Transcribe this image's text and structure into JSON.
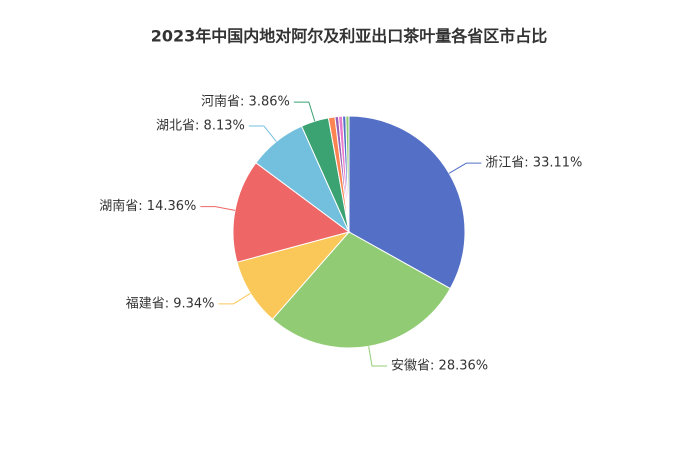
{
  "chart_data": {
    "type": "pie",
    "title": "2023年中国内地对阿尔及利亚出口茶叶量各省区市占比",
    "categories": [
      "浙江省",
      "安徽省",
      "福建省",
      "湖南省",
      "湖北省",
      "河南省",
      null,
      null,
      null,
      null,
      null
    ],
    "values": [
      33.11,
      28.36,
      9.34,
      14.36,
      8.13,
      3.86,
      0.9,
      0.5,
      0.55,
      0.45,
      0.44
    ],
    "value_labels": [
      "浙江省: 33.11%",
      "安徽省: 28.36%",
      "福建省: 9.34%",
      "湖南省: 14.36%",
      "湖北省: 8.13%",
      "河南省: 3.86%",
      null,
      null,
      null,
      null,
      null
    ],
    "colors": [
      "#5470c6",
      "#91cc75",
      "#fac858",
      "#ee6666",
      "#73c0de",
      "#3ba272",
      "#fc8452",
      "#9a60b4",
      "#ea7ccc",
      "#5470c6",
      "#91cc75"
    ]
  }
}
